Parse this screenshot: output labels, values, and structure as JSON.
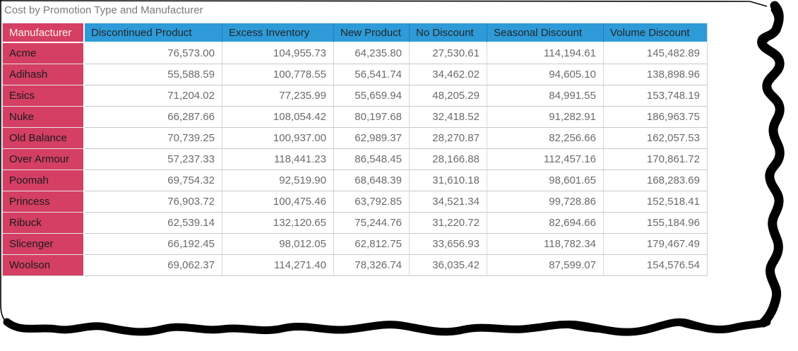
{
  "report": {
    "title": "Cost by Promotion Type and Manufacturer"
  },
  "table": {
    "corner_header": "Manufacturer",
    "columns": [
      "Discontinued Product",
      "Excess Inventory",
      "New Product",
      "No Discount",
      "Seasonal Discount",
      "Volume Discount"
    ],
    "rows": [
      {
        "manufacturer": "Acme",
        "values": [
          "76,573.00",
          "104,955.73",
          "64,235.80",
          "27,530.61",
          "114,194.61",
          "145,482.89"
        ]
      },
      {
        "manufacturer": "Adihash",
        "values": [
          "55,588.59",
          "100,778.55",
          "56,541.74",
          "34,462.02",
          "94,605.10",
          "138,898.96"
        ]
      },
      {
        "manufacturer": "Esics",
        "values": [
          "71,204.02",
          "77,235.99",
          "55,659.94",
          "48,205.29",
          "84,991.55",
          "153,748.19"
        ]
      },
      {
        "manufacturer": "Nuke",
        "values": [
          "66,287.66",
          "108,054.42",
          "80,197.68",
          "32,418.52",
          "91,282.91",
          "186,963.75"
        ]
      },
      {
        "manufacturer": "Old Balance",
        "values": [
          "70,739.25",
          "100,937.00",
          "62,989.37",
          "28,270.87",
          "82,256.66",
          "162,057.53"
        ]
      },
      {
        "manufacturer": "Over Armour",
        "values": [
          "57,237.33",
          "118,441.23",
          "86,548.45",
          "28,166.88",
          "112,457.16",
          "170,861.72"
        ]
      },
      {
        "manufacturer": "Poomah",
        "values": [
          "69,754.32",
          "92,519.90",
          "68,648.39",
          "31,610.18",
          "98,601.65",
          "168,283.69"
        ]
      },
      {
        "manufacturer": "Princess",
        "values": [
          "76,903.72",
          "100,475.46",
          "63,792.85",
          "34,521.34",
          "99,728.86",
          "152,518.41"
        ]
      },
      {
        "manufacturer": "Ribuck",
        "values": [
          "62,539.14",
          "132,120.65",
          "75,244.76",
          "31,220.72",
          "82,694.66",
          "155,184.96"
        ]
      },
      {
        "manufacturer": "Slicenger",
        "values": [
          "66,192.45",
          "98,012.05",
          "62,812.75",
          "33,656.93",
          "118,782.34",
          "179,467.49"
        ]
      },
      {
        "manufacturer": "Woolson",
        "values": [
          "69,062.37",
          "114,271.40",
          "78,326.74",
          "36,035.42",
          "87,599.07",
          "154,576.54"
        ]
      }
    ]
  },
  "colors": {
    "row_header_bg": "#d53f64",
    "column_header_bg": "#2e9bd8",
    "corner_text": "#fdf4e6",
    "row_label_text": "#1b1b1b",
    "column_header_text": "#21262c",
    "value_text": "#6b6b6b",
    "title_text": "#7b7b7b",
    "torn_edge": "#000000"
  },
  "chart_data": {
    "type": "table",
    "title": "Cost by Promotion Type and Manufacturer",
    "row_header": "Manufacturer",
    "categories": [
      "Acme",
      "Adihash",
      "Esics",
      "Nuke",
      "Old Balance",
      "Over Armour",
      "Poomah",
      "Princess",
      "Ribuck",
      "Slicenger",
      "Woolson"
    ],
    "series": [
      {
        "name": "Discontinued Product",
        "values": [
          76573.0,
          55588.59,
          71204.02,
          66287.66,
          70739.25,
          57237.33,
          69754.32,
          76903.72,
          62539.14,
          66192.45,
          69062.37
        ]
      },
      {
        "name": "Excess Inventory",
        "values": [
          104955.73,
          100778.55,
          77235.99,
          108054.42,
          100937.0,
          118441.23,
          92519.9,
          100475.46,
          132120.65,
          98012.05,
          114271.4
        ]
      },
      {
        "name": "New Product",
        "values": [
          64235.8,
          56541.74,
          55659.94,
          80197.68,
          62989.37,
          86548.45,
          68648.39,
          63792.85,
          75244.76,
          62812.75,
          78326.74
        ]
      },
      {
        "name": "No Discount",
        "values": [
          27530.61,
          34462.02,
          48205.29,
          32418.52,
          28270.87,
          28166.88,
          31610.18,
          34521.34,
          31220.72,
          33656.93,
          36035.42
        ]
      },
      {
        "name": "Seasonal Discount",
        "values": [
          114194.61,
          94605.1,
          84991.55,
          91282.91,
          82256.66,
          112457.16,
          98601.65,
          99728.86,
          82694.66,
          118782.34,
          87599.07
        ]
      },
      {
        "name": "Volume Discount",
        "values": [
          145482.89,
          138898.96,
          153748.19,
          186963.75,
          162057.53,
          170861.72,
          168283.69,
          152518.41,
          155184.96,
          179467.49,
          154576.54
        ]
      }
    ]
  }
}
